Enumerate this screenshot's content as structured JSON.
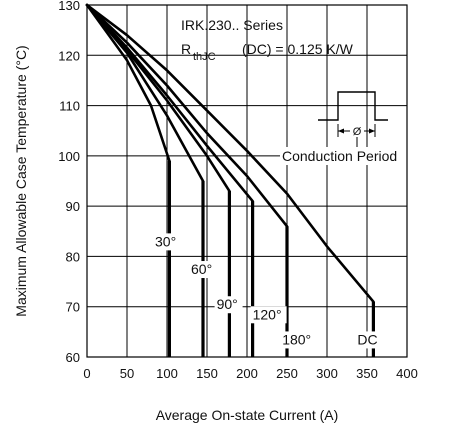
{
  "chart_data": {
    "type": "line",
    "title": "",
    "xlabel": "Average On-state Current (A)",
    "ylabel": "Maximum Allowable Case Temperature (°C)",
    "xlim": [
      0,
      400
    ],
    "ylim": [
      60,
      130
    ],
    "x_ticks": [
      "0",
      "50",
      "100",
      "150",
      "200",
      "250",
      "300",
      "350",
      "400"
    ],
    "y_ticks": [
      "60",
      "70",
      "80",
      "90",
      "100",
      "110",
      "120",
      "130"
    ],
    "grid": true,
    "annotations": {
      "series_title": "IRK.230.. Series",
      "rth_symbol": "R",
      "rth_subscript": "thJC",
      "rth_value": "(DC) = 0.125 K/W",
      "conduction_symbol": "Ø",
      "conduction_label": "Conduction Period"
    },
    "series": [
      {
        "name": "30°",
        "label_at": [
          85,
          82
        ],
        "points": [
          [
            0,
            130
          ],
          [
            50,
            119
          ],
          [
            80,
            110
          ],
          [
            103,
            99
          ]
        ],
        "drop_to": 60
      },
      {
        "name": "60°",
        "label_at": [
          130,
          76.5
        ],
        "points": [
          [
            0,
            130
          ],
          [
            50,
            120.5
          ],
          [
            100,
            108
          ],
          [
            145,
            95
          ]
        ],
        "drop_to": 60
      },
      {
        "name": "90°",
        "label_at": [
          162,
          69.5
        ],
        "points": [
          [
            0,
            130
          ],
          [
            50,
            121
          ],
          [
            100,
            111
          ],
          [
            150,
            100
          ],
          [
            178,
            93
          ]
        ],
        "drop_to": 60
      },
      {
        "name": "120°",
        "label_at": [
          207,
          67.5
        ],
        "points": [
          [
            0,
            130
          ],
          [
            50,
            121.5
          ],
          [
            100,
            112
          ],
          [
            150,
            102
          ],
          [
            207,
            91
          ]
        ],
        "drop_to": 60
      },
      {
        "name": "180°",
        "label_at": [
          244,
          62.5
        ],
        "points": [
          [
            0,
            130
          ],
          [
            50,
            122.5
          ],
          [
            100,
            114
          ],
          [
            150,
            104.5
          ],
          [
            200,
            96
          ],
          [
            250,
            86
          ]
        ],
        "drop_to": 60
      },
      {
        "name": "DC",
        "label_at": [
          338,
          62.5
        ],
        "points": [
          [
            0,
            130
          ],
          [
            50,
            124
          ],
          [
            100,
            117
          ],
          [
            150,
            109
          ],
          [
            200,
            101
          ],
          [
            250,
            92.5
          ],
          [
            300,
            82
          ],
          [
            358,
            71
          ]
        ],
        "drop_to": 60
      }
    ]
  }
}
